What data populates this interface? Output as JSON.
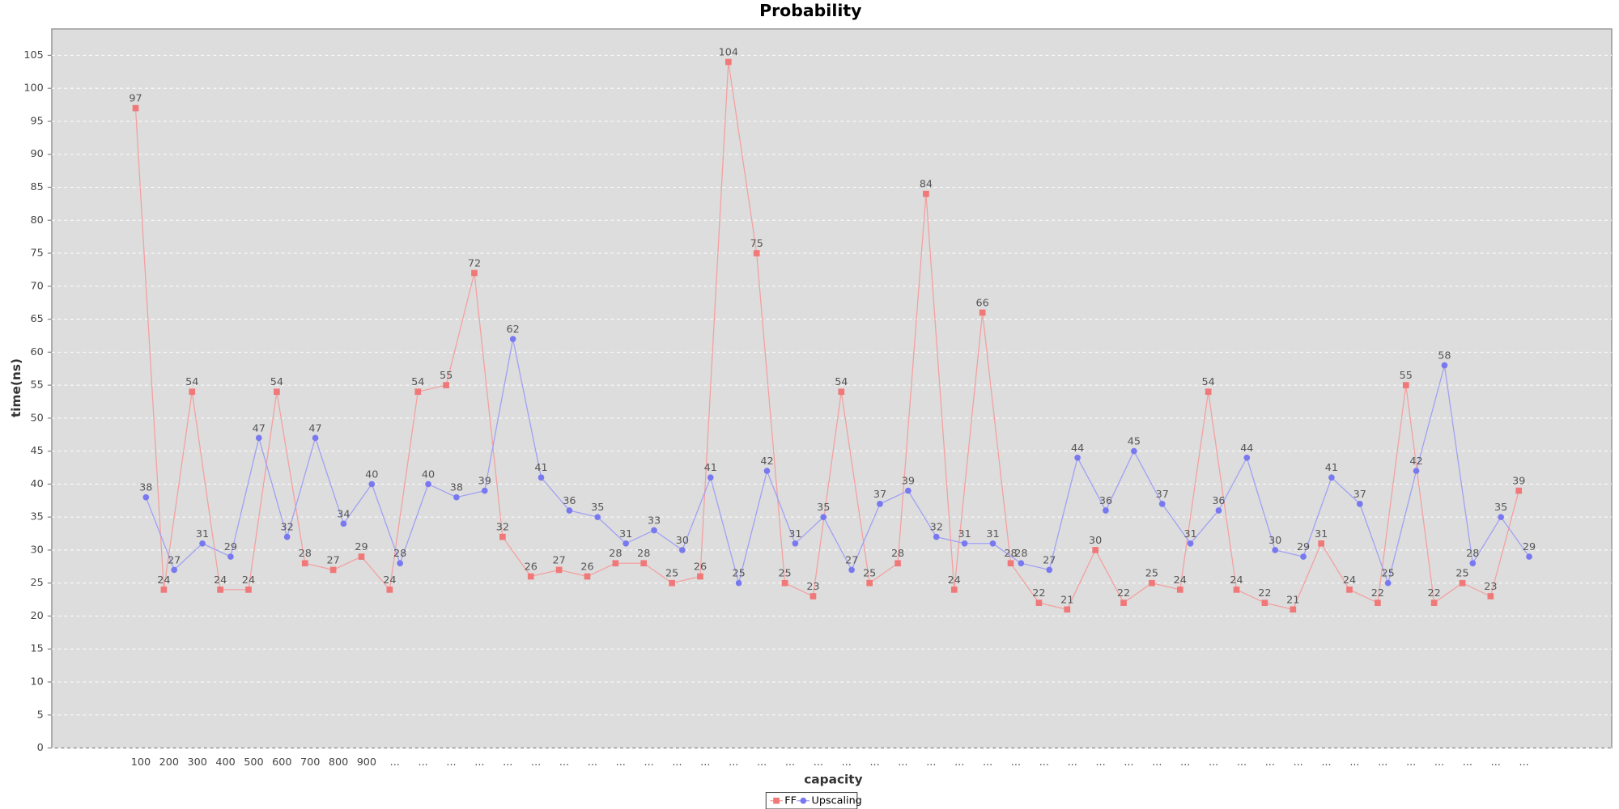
{
  "chart_data": {
    "type": "line",
    "title": "Probability",
    "x_label": "capacity",
    "y_label": "time(ns)",
    "categories": [
      "100",
      "200",
      "300",
      "400",
      "500",
      "600",
      "700",
      "800",
      "900",
      "...",
      "...",
      "...",
      "...",
      "...",
      "...",
      "...",
      "...",
      "...",
      "...",
      "...",
      "...",
      "...",
      "...",
      "...",
      "...",
      "...",
      "...",
      "...",
      "...",
      "...",
      "...",
      "...",
      "...",
      "...",
      "...",
      "...",
      "...",
      "...",
      "...",
      "...",
      "...",
      "...",
      "...",
      "...",
      "...",
      "...",
      "...",
      "...",
      "...",
      "..."
    ],
    "series": [
      {
        "name": "FF",
        "color": "#f07878",
        "values": [
          97,
          24,
          54,
          24,
          24,
          54,
          28,
          27,
          29,
          24,
          54,
          55,
          72,
          32,
          26,
          27,
          26,
          28,
          28,
          25,
          26,
          104,
          75,
          25,
          23,
          54,
          25,
          28,
          84,
          24,
          66,
          28,
          22,
          21,
          30,
          22,
          25,
          24,
          54,
          24,
          22,
          21,
          31,
          24,
          22,
          55,
          22,
          25,
          23,
          39
        ]
      },
      {
        "name": "Upscaling",
        "color": "#7878f0",
        "values": [
          38,
          27,
          31,
          29,
          47,
          32,
          47,
          34,
          40,
          28,
          40,
          38,
          39,
          62,
          41,
          36,
          35,
          31,
          33,
          30,
          41,
          25,
          42,
          31,
          35,
          27,
          37,
          39,
          32,
          31,
          31,
          28,
          27,
          44,
          36,
          45,
          37,
          31,
          36,
          44,
          30,
          29,
          41,
          37,
          25,
          42,
          58,
          28,
          35,
          29
        ]
      }
    ],
    "ylim": [
      0,
      109
    ],
    "yticks": [
      0,
      5,
      10,
      15,
      20,
      25,
      30,
      35,
      40,
      45,
      50,
      55,
      60,
      65,
      70,
      75,
      80,
      85,
      90,
      95,
      100,
      105
    ],
    "grid": true,
    "legend": "bottom"
  }
}
